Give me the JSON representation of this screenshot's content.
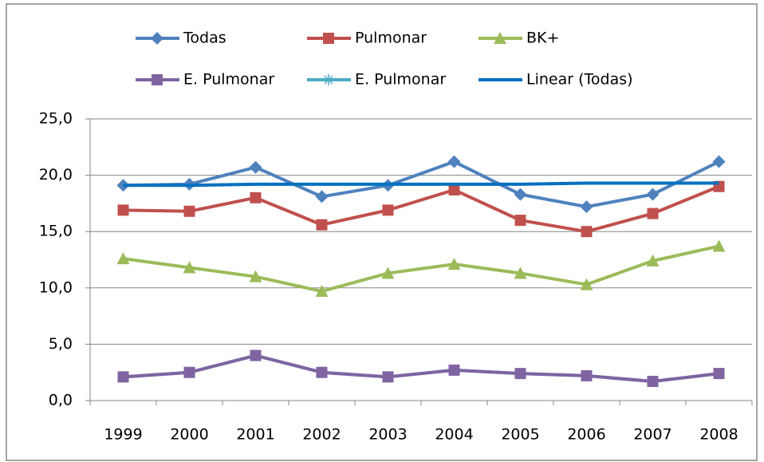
{
  "chart_data": {
    "type": "line",
    "categories": [
      "1999",
      "2000",
      "2001",
      "2002",
      "2003",
      "2004",
      "2005",
      "2006",
      "2007",
      "2008"
    ],
    "series": [
      {
        "name": "Todas",
        "color": "#4f81bd",
        "marker": "diamond",
        "values": [
          19.1,
          19.2,
          20.7,
          18.1,
          19.1,
          21.2,
          18.3,
          17.2,
          18.3,
          21.2
        ]
      },
      {
        "name": "Pulmonar",
        "color": "#c0504d",
        "marker": "square",
        "values": [
          16.9,
          16.8,
          18.0,
          15.6,
          16.9,
          18.7,
          16.0,
          15.0,
          16.6,
          19.0
        ]
      },
      {
        "name": "BK+",
        "color": "#9bbb59",
        "marker": "triangle",
        "values": [
          12.6,
          11.8,
          11.0,
          9.7,
          11.3,
          12.1,
          11.3,
          10.3,
          12.4,
          13.7
        ]
      },
      {
        "name": "E. Pulmonar",
        "color": "#8064a2",
        "marker": "square",
        "values": [
          2.1,
          2.5,
          4.0,
          2.5,
          2.1,
          2.7,
          2.4,
          2.2,
          1.7,
          2.4
        ]
      },
      {
        "name": "E. Pulmonar",
        "color": "#4bacc6",
        "marker": "asterisk",
        "values": [
          2.1,
          2.5,
          4.0,
          2.5,
          2.1,
          2.7,
          2.4,
          2.2,
          1.7,
          2.4
        ]
      },
      {
        "name": "Linear (Todas)",
        "color": "#0070c0",
        "marker": "none",
        "values": [
          19.1,
          19.1,
          19.2,
          19.2,
          19.2,
          19.2,
          19.2,
          19.3,
          19.3,
          19.3
        ]
      }
    ],
    "ylim": [
      0,
      25
    ],
    "yticks": [
      {
        "value": 0,
        "label": "0,0"
      },
      {
        "value": 5,
        "label": "5,0"
      },
      {
        "value": 10,
        "label": "10,0"
      },
      {
        "value": 15,
        "label": "15,0"
      },
      {
        "value": 20,
        "label": "20,0"
      },
      {
        "value": 25,
        "label": "25,0"
      }
    ],
    "grid": true,
    "legend": "top"
  }
}
